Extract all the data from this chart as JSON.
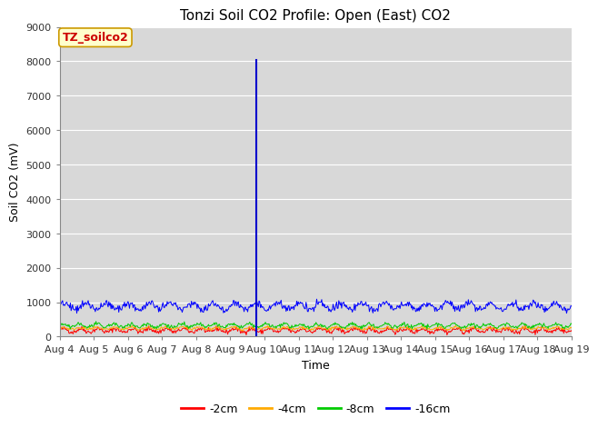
{
  "title": "Tonzi Soil CO2 Profile: Open (East) CO2",
  "ylabel": "Soil CO2 (mV)",
  "xlabel": "Time",
  "ylim": [
    0,
    9000
  ],
  "yticks": [
    0,
    1000,
    2000,
    3000,
    4000,
    5000,
    6000,
    7000,
    8000,
    9000
  ],
  "x_start_day": 4,
  "x_end_day": 19,
  "x_tick_days": [
    4,
    5,
    6,
    7,
    8,
    9,
    10,
    11,
    12,
    13,
    14,
    15,
    16,
    17,
    18,
    19
  ],
  "x_tick_labels": [
    "Aug 4",
    "Aug 5",
    "Aug 6",
    "Aug 7",
    "Aug 8",
    "Aug 9",
    "Aug 10",
    "Aug 11",
    "Aug 12",
    "Aug 13",
    "Aug 14",
    "Aug 15",
    "Aug 16",
    "Aug 17",
    "Aug 18",
    "Aug 19"
  ],
  "vline_day": 9.75,
  "vline_color": "#0000cc",
  "figure_bg": "#ffffff",
  "plot_bg_color": "#d8d8d8",
  "grid_color": "#ffffff",
  "series": [
    {
      "label": "-2cm",
      "color": "#ff0000",
      "base": 180,
      "amplitude": 50,
      "freq": 2.0,
      "phase": 0.0,
      "noise": 35
    },
    {
      "label": "-4cm",
      "color": "#ffaa00",
      "base": 240,
      "amplitude": 30,
      "freq": 2.0,
      "phase": 0.3,
      "noise": 20
    },
    {
      "label": "-8cm",
      "color": "#00cc00",
      "base": 320,
      "amplitude": 50,
      "freq": 2.0,
      "phase": 0.8,
      "noise": 28
    },
    {
      "label": "-16cm",
      "color": "#0000ff",
      "base": 880,
      "amplitude": 90,
      "freq": 1.6,
      "phase": 0.2,
      "noise": 55
    }
  ],
  "legend_label": "TZ_soilco2",
  "legend_bg": "#ffffcc",
  "legend_edge": "#cc9900",
  "title_fontsize": 11,
  "axis_fontsize": 9,
  "tick_fontsize": 8,
  "legend_fontsize": 9
}
